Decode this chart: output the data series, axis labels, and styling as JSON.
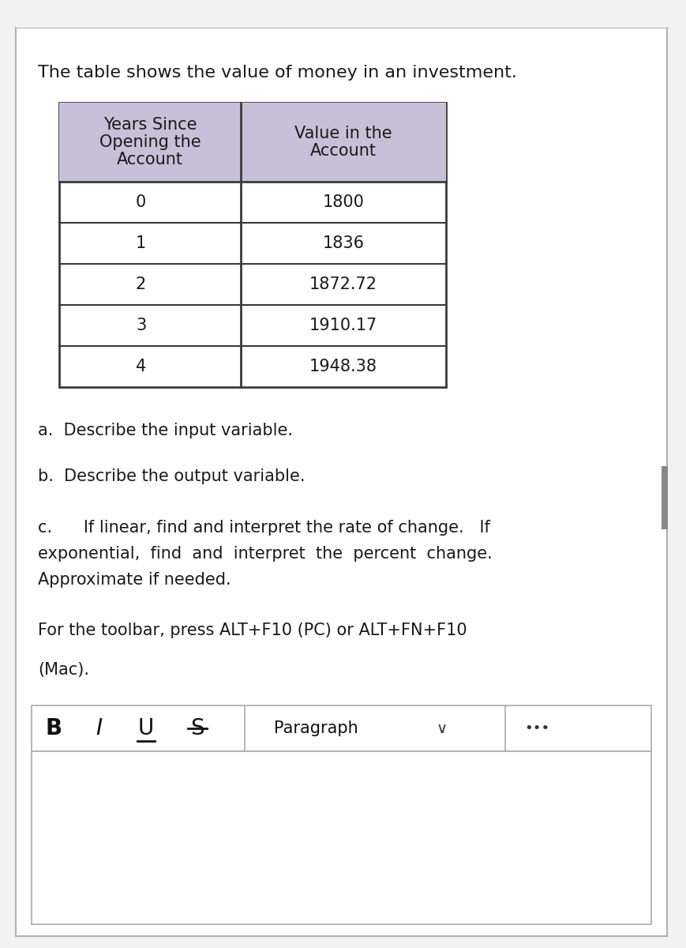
{
  "title": "The table shows the value of money in an investment.",
  "col1_header": [
    "Years Since",
    "Opening the",
    "Account"
  ],
  "col2_header": [
    "Value in the",
    "Account"
  ],
  "rows": [
    [
      "0",
      "1800"
    ],
    [
      "1",
      "1836"
    ],
    [
      "2",
      "1872.72"
    ],
    [
      "3",
      "1910.17"
    ],
    [
      "4",
      "1948.38"
    ]
  ],
  "header_bg": "#c8c0d8",
  "table_border_color": "#3a3a3a",
  "bg_color": "#f2f2f2",
  "white": "#ffffff",
  "text_color": "#1a1a1a",
  "question_a": "a.  Describe the input variable.",
  "question_b": "b.  Describe the output variable.",
  "question_c1": "c.      If linear, find and interpret the rate of change.   If",
  "question_c2": "exponential,  find  and  interpret  the  percent  change.",
  "question_c3": "Approximate if needed.",
  "toolbar_text1": "For the toolbar, press ALT+F10 (PC) or ALT+FN+F10",
  "toolbar_text2": "(Mac).",
  "font_size_title": 16,
  "font_size_table": 15,
  "font_size_questions": 15,
  "font_size_toolbar": 15,
  "font_size_buttons": 20
}
